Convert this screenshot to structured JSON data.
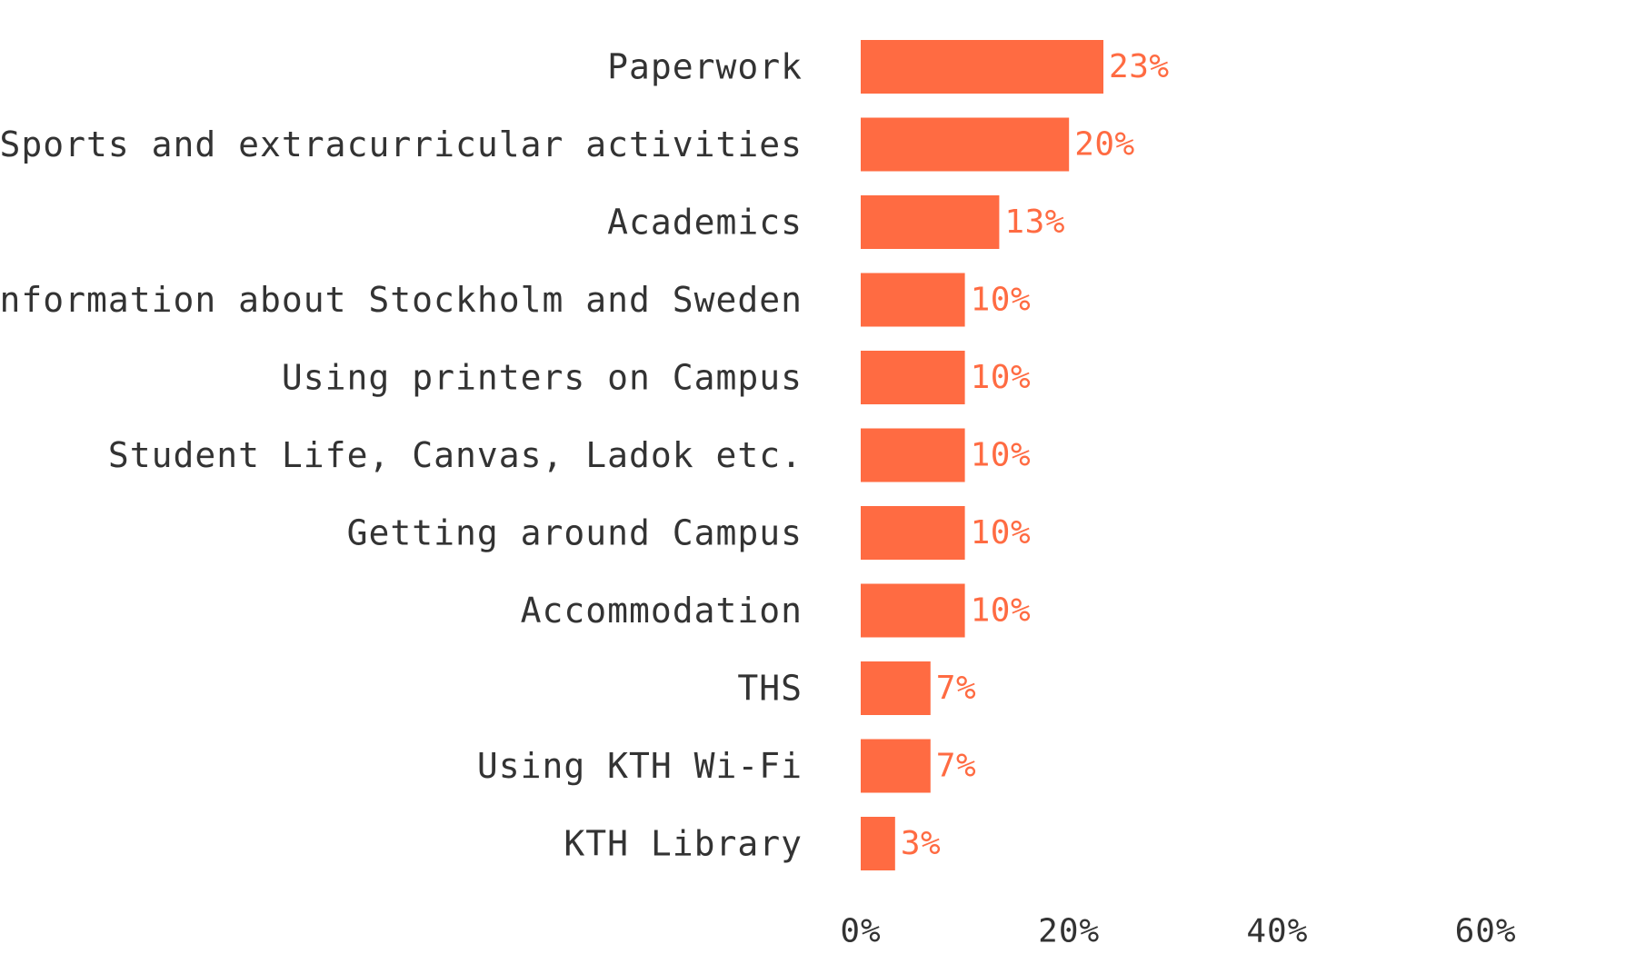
{
  "chart_data": {
    "type": "bar",
    "orientation": "horizontal",
    "categories": [
      "Paperwork",
      "Sports and extracurricular activities",
      "Academics",
      "Information about Stockholm and Sweden",
      "Using printers on Campus",
      "Student Life, Canvas, Ladok etc.",
      "Getting around Campus",
      "Accommodation",
      "THS",
      "Using KTH Wi-Fi",
      "KTH Library"
    ],
    "values": [
      23.3,
      20,
      13.3,
      10,
      10,
      10,
      10,
      10,
      6.7,
      6.7,
      3.3
    ],
    "data_labels": [
      "23%",
      "20%",
      "13%",
      "10%",
      "10%",
      "10%",
      "10%",
      "10%",
      "7%",
      "7%",
      "3%"
    ],
    "title": "",
    "xlabel": "",
    "ylabel": "",
    "xlim": [
      0,
      70
    ],
    "xticks": [
      0,
      20,
      40,
      60
    ],
    "xtick_labels": [
      "0%",
      "20%",
      "40%",
      "60%"
    ],
    "grid": false,
    "legend": "none",
    "colors": {
      "bar": "#ff6b42",
      "data_label": "#ff6b42",
      "text": "#333333"
    }
  }
}
